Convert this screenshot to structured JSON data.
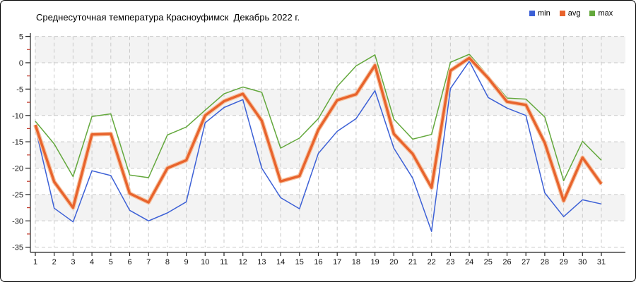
{
  "chart_data": {
    "type": "line",
    "title": "Среднесуточная температура Красноуфимск  Декабрь 2022 г.",
    "xlabel": "",
    "ylabel": "",
    "categories": [
      "1",
      "2",
      "3",
      "4",
      "5",
      "6",
      "7",
      "8",
      "9",
      "10",
      "11",
      "12",
      "13",
      "14",
      "15",
      "16",
      "17",
      "18",
      "19",
      "20",
      "21",
      "22",
      "23",
      "24",
      "25",
      "26",
      "27",
      "28",
      "29",
      "30",
      "31"
    ],
    "series": [
      {
        "name": "min",
        "color": "#3c60d6",
        "line_width": 1.5,
        "values": [
          -12.3,
          -27.6,
          -30.2,
          -20.5,
          -21.4,
          -28.0,
          -30.0,
          -28.5,
          -26.4,
          -11.4,
          -8.5,
          -7.0,
          -20.0,
          -25.6,
          -27.7,
          -17.2,
          -13.0,
          -10.6,
          -5.3,
          -16.2,
          -21.9,
          -32.0,
          -4.9,
          0.3,
          -6.6,
          -8.6,
          -10.0,
          -24.7,
          -29.2,
          -26.0,
          -26.8
        ]
      },
      {
        "name": "avg",
        "color": "#e8632c",
        "line_width": 3.4,
        "values": [
          -11.8,
          -22.6,
          -27.5,
          -13.6,
          -13.5,
          -24.8,
          -26.5,
          -20.0,
          -18.5,
          -10.0,
          -7.3,
          -5.9,
          -11.0,
          -22.5,
          -21.5,
          -12.7,
          -7.1,
          -6.0,
          -0.5,
          -13.5,
          -17.3,
          -23.7,
          -1.5,
          0.9,
          -2.9,
          -7.4,
          -8.0,
          -15.2,
          -26.2,
          -18.0,
          -23.0
        ]
      },
      {
        "name": "max",
        "color": "#63a83c",
        "line_width": 1.5,
        "values": [
          -11.1,
          -15.4,
          -21.6,
          -10.2,
          -9.7,
          -21.3,
          -21.8,
          -13.7,
          -12.2,
          -9.0,
          -5.9,
          -4.6,
          -5.6,
          -16.2,
          -14.3,
          -10.6,
          -4.5,
          -0.6,
          1.5,
          -10.7,
          -14.5,
          -13.6,
          0.1,
          1.6,
          -2.5,
          -6.7,
          -6.9,
          -10.3,
          -22.4,
          -14.9,
          -18.5
        ]
      }
    ],
    "ylim": [
      -35,
      5
    ],
    "ytick_step": 5,
    "y_minor_step": 2.5,
    "yticks": [
      "5",
      "0",
      "-5",
      "-10",
      "-15",
      "-20",
      "-25",
      "-30",
      "-35"
    ],
    "grid": true,
    "legend_position": "top-right",
    "style": {
      "grid_color": "#c9c9c9",
      "band_color": "#f3f3f3",
      "axis_color": "#222222",
      "minor_tick_color": "#c0392b",
      "label_color": "#111111",
      "avg_halo_color": "#f6c2a0",
      "background": "#ffffff"
    }
  }
}
